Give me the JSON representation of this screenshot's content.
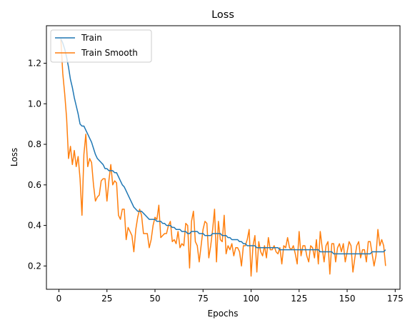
{
  "chart_data": {
    "type": "line",
    "title": "Loss",
    "xlabel": "Epochs",
    "ylabel": "Loss",
    "xlim": [
      -6.5,
      177.5
    ],
    "ylim": [
      0.085,
      1.385
    ],
    "xticks": [
      0,
      25,
      50,
      75,
      100,
      125,
      150,
      175
    ],
    "xtick_labels": [
      "0",
      "25",
      "50",
      "75",
      "100",
      "125",
      "150",
      "175"
    ],
    "yticks": [
      0.2,
      0.4,
      0.6,
      0.8,
      1.0,
      1.2
    ],
    "ytick_labels": [
      "0.2",
      "0.4",
      "0.6",
      "0.8",
      "1.0",
      "1.2"
    ],
    "grid": false,
    "legend_position": "upper-left",
    "series": [
      {
        "name": "Train",
        "color": "#1f77b4",
        "x": [
          1,
          2,
          3,
          4,
          5,
          6,
          7,
          8,
          9,
          10,
          11,
          12,
          13,
          14,
          15,
          16,
          17,
          18,
          19,
          20,
          21,
          22,
          23,
          24,
          25,
          26,
          27,
          28,
          29,
          30,
          31,
          32,
          33,
          34,
          35,
          36,
          37,
          38,
          39,
          40,
          41,
          42,
          43,
          44,
          45,
          46,
          47,
          48,
          49,
          50,
          51,
          52,
          53,
          54,
          55,
          56,
          57,
          58,
          59,
          60,
          61,
          62,
          63,
          64,
          65,
          66,
          67,
          68,
          69,
          70,
          71,
          72,
          73,
          74,
          75,
          76,
          77,
          78,
          79,
          80,
          81,
          82,
          83,
          84,
          85,
          86,
          87,
          88,
          89,
          90,
          91,
          92,
          93,
          94,
          95,
          96,
          97,
          98,
          99,
          100,
          101,
          102,
          103,
          104,
          105,
          106,
          107,
          108,
          109,
          110,
          111,
          112,
          113,
          114,
          115,
          116,
          117,
          118,
          119,
          120,
          121,
          122,
          123,
          124,
          125,
          126,
          127,
          128,
          129,
          130,
          131,
          132,
          133,
          134,
          135,
          136,
          137,
          138,
          139,
          140,
          141,
          142,
          143,
          144,
          145,
          146,
          147,
          148,
          149,
          150,
          151,
          152,
          153,
          154,
          155,
          156,
          157,
          158,
          159,
          160,
          161,
          162,
          163,
          164,
          165,
          166,
          167,
          168,
          169,
          170
        ],
        "y": [
          1.32,
          1.3,
          1.27,
          1.23,
          1.18,
          1.12,
          1.08,
          1.03,
          0.99,
          0.95,
          0.9,
          0.89,
          0.89,
          0.87,
          0.85,
          0.83,
          0.81,
          0.78,
          0.75,
          0.73,
          0.72,
          0.71,
          0.7,
          0.68,
          0.68,
          0.67,
          0.67,
          0.67,
          0.66,
          0.66,
          0.64,
          0.62,
          0.6,
          0.59,
          0.57,
          0.55,
          0.53,
          0.51,
          0.49,
          0.48,
          0.47,
          0.47,
          0.47,
          0.46,
          0.45,
          0.44,
          0.43,
          0.43,
          0.43,
          0.43,
          0.42,
          0.42,
          0.42,
          0.41,
          0.41,
          0.4,
          0.4,
          0.4,
          0.39,
          0.39,
          0.38,
          0.38,
          0.38,
          0.37,
          0.37,
          0.37,
          0.36,
          0.36,
          0.37,
          0.37,
          0.37,
          0.37,
          0.36,
          0.36,
          0.36,
          0.35,
          0.35,
          0.35,
          0.35,
          0.36,
          0.36,
          0.36,
          0.36,
          0.36,
          0.35,
          0.35,
          0.35,
          0.34,
          0.34,
          0.33,
          0.33,
          0.33,
          0.33,
          0.32,
          0.32,
          0.31,
          0.31,
          0.3,
          0.3,
          0.3,
          0.3,
          0.3,
          0.29,
          0.29,
          0.29,
          0.29,
          0.29,
          0.29,
          0.29,
          0.29,
          0.29,
          0.29,
          0.29,
          0.29,
          0.28,
          0.28,
          0.28,
          0.28,
          0.28,
          0.28,
          0.28,
          0.28,
          0.28,
          0.28,
          0.28,
          0.28,
          0.28,
          0.28,
          0.28,
          0.28,
          0.28,
          0.28,
          0.28,
          0.28,
          0.28,
          0.27,
          0.27,
          0.27,
          0.27,
          0.27,
          0.27,
          0.27,
          0.26,
          0.26,
          0.26,
          0.26,
          0.26,
          0.26,
          0.26,
          0.26,
          0.26,
          0.26,
          0.26,
          0.26,
          0.26,
          0.26,
          0.26,
          0.26,
          0.26,
          0.26,
          0.26,
          0.26,
          0.27,
          0.27,
          0.27,
          0.27,
          0.27,
          0.27,
          0.27,
          0.28
        ]
      },
      {
        "name": "Train Smooth",
        "color": "#ff7f0e",
        "x": [
          1,
          2,
          3,
          4,
          5,
          6,
          7,
          8,
          9,
          10,
          11,
          12,
          13,
          14,
          15,
          16,
          17,
          18,
          19,
          20,
          21,
          22,
          23,
          24,
          25,
          26,
          27,
          28,
          29,
          30,
          31,
          32,
          33,
          34,
          35,
          36,
          37,
          38,
          39,
          40,
          41,
          42,
          43,
          44,
          45,
          46,
          47,
          48,
          49,
          50,
          51,
          52,
          53,
          54,
          55,
          56,
          57,
          58,
          59,
          60,
          61,
          62,
          63,
          64,
          65,
          66,
          67,
          68,
          69,
          70,
          71,
          72,
          73,
          74,
          75,
          76,
          77,
          78,
          79,
          80,
          81,
          82,
          83,
          84,
          85,
          86,
          87,
          88,
          89,
          90,
          91,
          92,
          93,
          94,
          95,
          96,
          97,
          98,
          99,
          100,
          101,
          102,
          103,
          104,
          105,
          106,
          107,
          108,
          109,
          110,
          111,
          112,
          113,
          114,
          115,
          116,
          117,
          118,
          119,
          120,
          121,
          122,
          123,
          124,
          125,
          126,
          127,
          128,
          129,
          130,
          131,
          132,
          133,
          134,
          135,
          136,
          137,
          138,
          139,
          140,
          141,
          142,
          143,
          144,
          145,
          146,
          147,
          148,
          149,
          150,
          151,
          152,
          153,
          154,
          155,
          156,
          157,
          158,
          159,
          160,
          161,
          162,
          163,
          164,
          165,
          166,
          167,
          168,
          169,
          170
        ],
        "y": [
          1.32,
          1.15,
          1.05,
          0.93,
          0.73,
          0.79,
          0.7,
          0.77,
          0.69,
          0.74,
          0.63,
          0.45,
          0.75,
          0.85,
          0.69,
          0.73,
          0.71,
          0.6,
          0.52,
          0.54,
          0.55,
          0.62,
          0.63,
          0.63,
          0.52,
          0.62,
          0.7,
          0.6,
          0.62,
          0.61,
          0.45,
          0.43,
          0.48,
          0.48,
          0.33,
          0.39,
          0.37,
          0.35,
          0.27,
          0.38,
          0.44,
          0.48,
          0.45,
          0.36,
          0.36,
          0.36,
          0.29,
          0.33,
          0.4,
          0.44,
          0.43,
          0.5,
          0.34,
          0.35,
          0.36,
          0.36,
          0.4,
          0.42,
          0.32,
          0.33,
          0.31,
          0.37,
          0.29,
          0.31,
          0.3,
          0.41,
          0.4,
          0.19,
          0.42,
          0.47,
          0.32,
          0.3,
          0.22,
          0.3,
          0.38,
          0.42,
          0.41,
          0.24,
          0.3,
          0.38,
          0.48,
          0.22,
          0.42,
          0.33,
          0.32,
          0.45,
          0.26,
          0.3,
          0.28,
          0.31,
          0.25,
          0.29,
          0.29,
          0.27,
          0.2,
          0.3,
          0.3,
          0.33,
          0.38,
          0.15,
          0.3,
          0.35,
          0.17,
          0.32,
          0.27,
          0.25,
          0.3,
          0.24,
          0.34,
          0.28,
          0.28,
          0.3,
          0.27,
          0.26,
          0.29,
          0.21,
          0.3,
          0.29,
          0.34,
          0.29,
          0.28,
          0.3,
          0.26,
          0.21,
          0.37,
          0.25,
          0.3,
          0.3,
          0.25,
          0.22,
          0.3,
          0.29,
          0.24,
          0.33,
          0.21,
          0.37,
          0.29,
          0.22,
          0.3,
          0.32,
          0.16,
          0.31,
          0.31,
          0.22,
          0.29,
          0.31,
          0.27,
          0.31,
          0.22,
          0.27,
          0.32,
          0.3,
          0.17,
          0.24,
          0.3,
          0.32,
          0.24,
          0.28,
          0.28,
          0.22,
          0.32,
          0.32,
          0.26,
          0.2,
          0.25,
          0.38,
          0.3,
          0.33,
          0.3,
          0.2
        ]
      }
    ]
  }
}
